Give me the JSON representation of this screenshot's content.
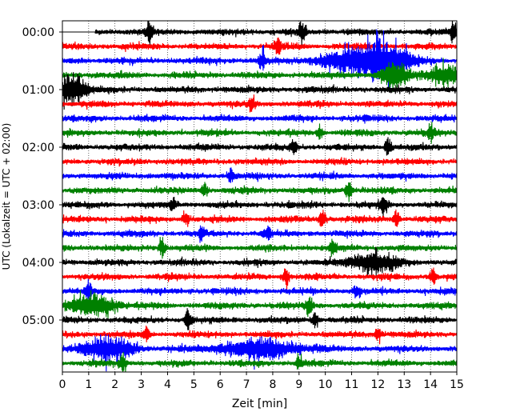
{
  "chart_data": {
    "type": "line",
    "title": "",
    "xlabel": "Zeit  [min]",
    "ylabel": "UTC (Lokalzeit = UTC + 02:00)",
    "xlim": [
      0,
      15
    ],
    "x_ticks": [
      0,
      1,
      2,
      3,
      4,
      5,
      6,
      7,
      8,
      9,
      10,
      11,
      12,
      13,
      14,
      15
    ],
    "grid": "vertical dotted lines at each minute",
    "trace_interval_min": 15,
    "hours_shown": 6,
    "y_ticks": [
      "00:00",
      "01:00",
      "02:00",
      "03:00",
      "04:00",
      "05:00"
    ],
    "colors": [
      "#000000",
      "#ff0000",
      "#0000ff",
      "#008000"
    ],
    "series": [
      {
        "label": "00:00",
        "color_index": 0,
        "data_start_min": 1.25,
        "events": [
          {
            "t": 3.3,
            "amp": 0.9
          },
          {
            "t": 9.1,
            "amp": 0.8
          },
          {
            "t": 14.9,
            "amp": 0.9
          }
        ]
      },
      {
        "label": "00:15",
        "color_index": 1,
        "events": [
          {
            "t": 8.2,
            "amp": 0.8
          }
        ]
      },
      {
        "label": "00:30",
        "color_index": 2,
        "events": [
          {
            "t": 12.3,
            "amp": 1.6,
            "width": 0.9
          },
          {
            "t": 11.0,
            "amp": 0.9,
            "width": 1.2
          },
          {
            "t": 7.6,
            "amp": 0.8
          }
        ]
      },
      {
        "label": "00:45",
        "color_index": 3,
        "events": [
          {
            "t": 12.6,
            "amp": 1.2,
            "width": 0.5
          },
          {
            "t": 14.5,
            "amp": 0.9,
            "width": 0.6
          }
        ]
      },
      {
        "label": "01:00",
        "color_index": 0,
        "events": [
          {
            "t": 0.4,
            "amp": 1.4,
            "width": 0.5
          }
        ]
      },
      {
        "label": "01:15",
        "color_index": 1,
        "events": [
          {
            "t": 7.2,
            "amp": 0.6
          }
        ]
      },
      {
        "label": "01:30",
        "color_index": 2,
        "events": []
      },
      {
        "label": "01:45",
        "color_index": 3,
        "events": [
          {
            "t": 14.0,
            "amp": 0.6
          },
          {
            "t": 9.8,
            "amp": 0.5
          }
        ]
      },
      {
        "label": "02:00",
        "color_index": 0,
        "events": [
          {
            "t": 8.8,
            "amp": 0.7
          },
          {
            "t": 12.4,
            "amp": 0.7
          }
        ]
      },
      {
        "label": "02:15",
        "color_index": 1,
        "events": []
      },
      {
        "label": "02:30",
        "color_index": 2,
        "events": [
          {
            "t": 6.4,
            "amp": 0.5
          }
        ]
      },
      {
        "label": "02:45",
        "color_index": 3,
        "events": [
          {
            "t": 10.9,
            "amp": 1.0
          },
          {
            "t": 5.4,
            "amp": 0.6
          }
        ]
      },
      {
        "label": "03:00",
        "color_index": 0,
        "events": [
          {
            "t": 12.2,
            "amp": 0.9
          },
          {
            "t": 4.2,
            "amp": 0.6
          }
        ]
      },
      {
        "label": "03:15",
        "color_index": 1,
        "events": [
          {
            "t": 9.9,
            "amp": 0.8
          },
          {
            "t": 4.7,
            "amp": 0.6
          },
          {
            "t": 12.7,
            "amp": 0.6
          }
        ]
      },
      {
        "label": "03:30",
        "color_index": 2,
        "events": [
          {
            "t": 7.8,
            "amp": 0.6
          },
          {
            "t": 5.3,
            "amp": 0.5
          }
        ]
      },
      {
        "label": "03:45",
        "color_index": 3,
        "events": [
          {
            "t": 3.8,
            "amp": 0.7
          },
          {
            "t": 10.3,
            "amp": 0.7
          }
        ]
      },
      {
        "label": "04:00",
        "color_index": 0,
        "events": [
          {
            "t": 11.8,
            "amp": 0.9,
            "width": 0.8
          }
        ]
      },
      {
        "label": "04:15",
        "color_index": 1,
        "events": [
          {
            "t": 8.5,
            "amp": 0.7
          },
          {
            "t": 14.1,
            "amp": 0.7
          }
        ]
      },
      {
        "label": "04:30",
        "color_index": 2,
        "events": [
          {
            "t": 1.0,
            "amp": 0.8
          },
          {
            "t": 11.2,
            "amp": 0.6
          }
        ]
      },
      {
        "label": "04:45",
        "color_index": 3,
        "events": [
          {
            "t": 1.2,
            "amp": 1.0,
            "width": 0.8
          },
          {
            "t": 9.4,
            "amp": 0.8
          }
        ]
      },
      {
        "label": "05:00",
        "color_index": 0,
        "events": [
          {
            "t": 4.8,
            "amp": 0.9
          },
          {
            "t": 9.6,
            "amp": 0.7
          }
        ]
      },
      {
        "label": "05:15",
        "color_index": 1,
        "events": [
          {
            "t": 3.2,
            "amp": 0.7
          },
          {
            "t": 12.0,
            "amp": 0.6
          }
        ]
      },
      {
        "label": "05:30",
        "color_index": 2,
        "events": [
          {
            "t": 1.7,
            "amp": 0.9,
            "width": 1.0
          },
          {
            "t": 7.5,
            "amp": 0.8,
            "width": 1.5
          }
        ]
      },
      {
        "label": "05:45",
        "color_index": 3,
        "events": [
          {
            "t": 2.3,
            "amp": 0.7
          },
          {
            "t": 9.0,
            "amp": 0.6
          }
        ]
      }
    ]
  }
}
